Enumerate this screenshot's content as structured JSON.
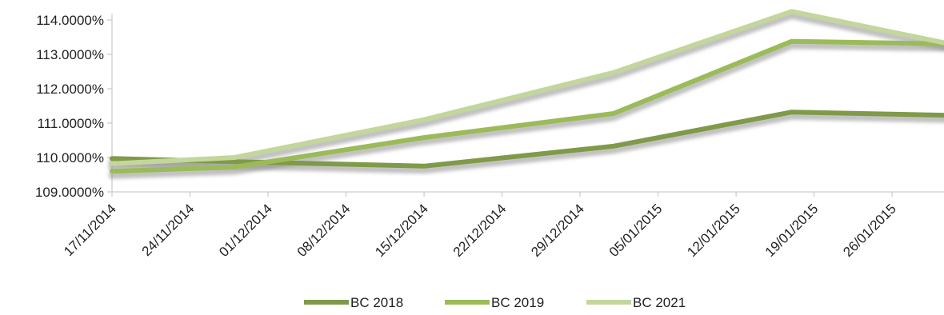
{
  "chart_data": {
    "type": "line",
    "x": [
      "17/11/2014",
      "28/11/2014",
      "15/12/2014",
      "01/01/2015",
      "17/01/2015",
      "01/02/2015"
    ],
    "x_tick_labels": [
      "17/11/2014",
      "24/11/2014",
      "01/12/2014",
      "08/12/2014",
      "15/12/2014",
      "22/12/2014",
      "29/12/2014",
      "05/01/2015",
      "12/01/2015",
      "19/01/2015",
      "26/01/2015"
    ],
    "y_tick_labels": [
      "109.0000%",
      "110.0000%",
      "111.0000%",
      "112.0000%",
      "113.0000%",
      "114.0000%"
    ],
    "ylim": [
      109,
      114
    ],
    "series": [
      {
        "name": "BC 2018",
        "values": [
          109.97,
          109.88,
          109.75,
          110.33,
          111.32,
          111.22
        ]
      },
      {
        "name": "BC 2019",
        "values": [
          109.6,
          109.72,
          110.58,
          111.28,
          113.38,
          113.3
        ]
      },
      {
        "name": "BC 2021",
        "values": [
          109.82,
          110.0,
          111.1,
          112.47,
          114.25,
          113.25
        ]
      }
    ],
    "colors": [
      "#7f9a48",
      "#9bbb59",
      "#c3d69b"
    ],
    "grid": false,
    "legend_position": "bottom",
    "title": "",
    "xlabel": "",
    "ylabel": ""
  }
}
